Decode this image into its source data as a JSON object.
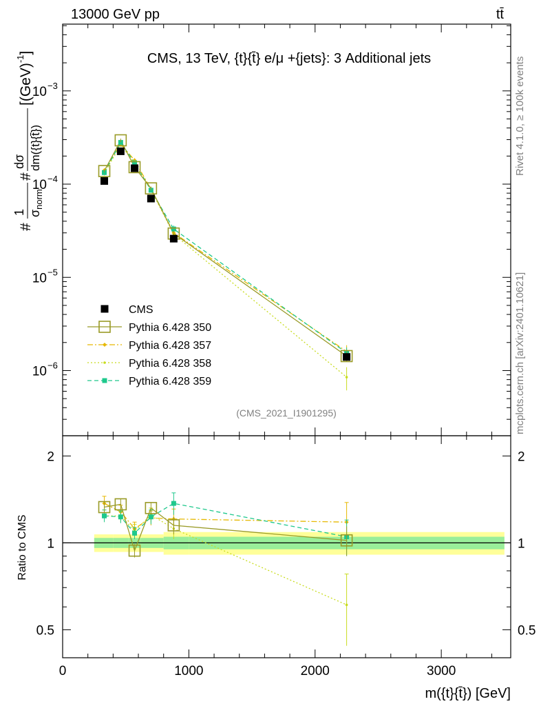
{
  "header": {
    "left": "13000 GeV pp",
    "right": "tt̄"
  },
  "side_labels": {
    "rivet": "Rivet 4.1.0, ≥ 100k events",
    "mcplots": "mcplots.cern.ch [arXiv:2401.10621]"
  },
  "chart_data": {
    "type": "scatter",
    "title": "CMS, 13 TeV, {t}{t̄} e/μ +{jets}: 3 Additional jets",
    "analysis_id": "(CMS_2021_I1901295)",
    "xlabel": "m({t}{t̄}) [GeV]",
    "ylabel_main": "#1/σnorm #dσ/dm({t}{t̄}) [(GeV)^-1]",
    "ylabel_ratio": "Ratio to CMS",
    "xlim": [
      0,
      3550
    ],
    "ylim_main": [
      2e-07,
      0.0052
    ],
    "ylim_ratio": [
      0.4,
      2.35
    ],
    "yscale_main": "log",
    "yscale_ratio": "log",
    "x_ticks": [
      0,
      1000,
      2000,
      3000
    ],
    "x_tick_labels": [
      "0",
      "1000",
      "2000",
      "3000"
    ],
    "y_main_tick_labels": [
      {
        "value": 1e-06,
        "base": "10",
        "exp": "−6"
      },
      {
        "value": 1e-05,
        "base": "10",
        "exp": "−5"
      },
      {
        "value": 0.0001,
        "base": "10",
        "exp": "−4"
      },
      {
        "value": 0.001,
        "base": "10",
        "exp": "−3"
      }
    ],
    "y_ratio_tick_labels": [
      {
        "value": 0.5,
        "label": "0.5"
      },
      {
        "value": 1,
        "label": "1"
      },
      {
        "value": 2,
        "label": "2"
      }
    ],
    "x": [
      330,
      460,
      570,
      700,
      880,
      2250
    ],
    "data": {
      "name": "CMS",
      "values": [
        0.000108,
        0.000225,
        0.000148,
        7e-05,
        2.6e-05,
        1.4e-06
      ],
      "band_edges": [
        250,
        400,
        520,
        620,
        800,
        1000,
        3500
      ],
      "band_inner": [
        0.04,
        0.04,
        0.04,
        0.04,
        0.05,
        0.05
      ],
      "band_outer": [
        0.07,
        0.07,
        0.07,
        0.07,
        0.09,
        0.09
      ]
    },
    "series": [
      {
        "name": "Pythia 6.428 350",
        "color": "#999a26",
        "marker": "open-square",
        "line": "solid",
        "values": [
          0.000138,
          0.000295,
          0.000152,
          9e-05,
          2.95e-05,
          1.43e-06
        ],
        "ratio": [
          1.33,
          1.36,
          0.94,
          1.32,
          1.15,
          1.02
        ],
        "ratio_err": [
          0.05,
          0.06,
          0.05,
          0.06,
          0.08,
          0.12
        ]
      },
      {
        "name": "Pythia 6.428 357",
        "color": "#e6b800",
        "marker": "small-diamond",
        "line": "dashdot",
        "values": [
          0.00014,
          0.00027,
          0.00018,
          8.8e-05,
          3e-05,
          1.6e-06
        ],
        "ratio": [
          1.37,
          1.28,
          1.12,
          1.22,
          1.21,
          1.18
        ],
        "ratio_err": [
          0.08,
          0.07,
          0.06,
          0.07,
          0.1,
          0.2
        ]
      },
      {
        "name": "Pythia 6.428 358",
        "color": "#c8dc1e",
        "marker": "small-dot",
        "line": "dotted",
        "values": [
          0.00013,
          0.000265,
          0.000166,
          8.7e-05,
          2.9e-05,
          8.5e-07
        ],
        "ratio": [
          1.24,
          1.24,
          1.1,
          1.25,
          1.12,
          0.61
        ],
        "ratio_err": [
          0.06,
          0.06,
          0.06,
          0.07,
          0.09,
          0.17
        ]
      },
      {
        "name": "Pythia 6.428 359",
        "color": "#1ec88c",
        "marker": "small-square",
        "line": "dashed",
        "values": [
          0.000133,
          0.00028,
          0.000169,
          8.6e-05,
          3.3e-05,
          1.55e-06
        ],
        "ratio": [
          1.24,
          1.23,
          1.08,
          1.23,
          1.37,
          1.05
        ],
        "ratio_err": [
          0.06,
          0.06,
          0.05,
          0.07,
          0.12,
          0.15
        ]
      }
    ]
  }
}
